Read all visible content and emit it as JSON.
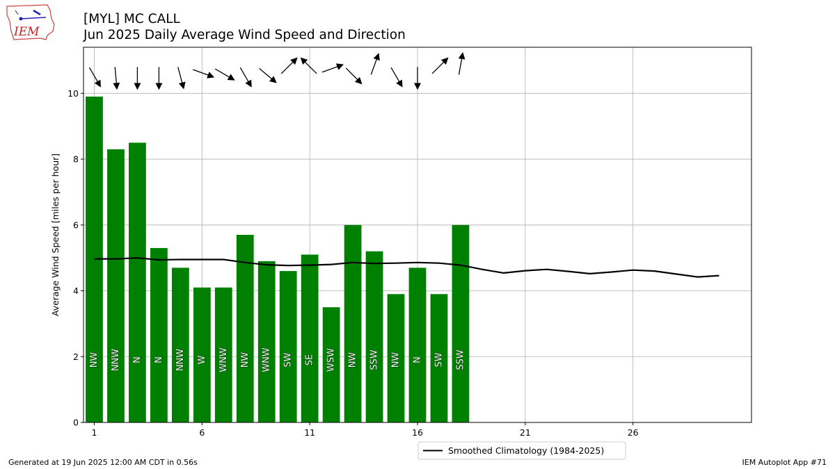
{
  "titles": {
    "line1": "[MYL] MC CALL",
    "line2": "Jun 2025 Daily Average Wind Speed and Direction"
  },
  "logo_text": "IEM",
  "footer": {
    "left": "Generated at 19 Jun 2025 12:00 AM CDT in 0.56s",
    "right": "IEM Autoplot App #71"
  },
  "colors": {
    "bar": "#008000",
    "climo_line": "#000000",
    "grid": "#b0b0b0",
    "bar_label_fill": "#ffffff"
  },
  "chart_data": {
    "type": "bar",
    "ylabel": "Average Wind Speed [miles per hour]",
    "xlabel": "",
    "xlim": [
      0.5,
      31.5
    ],
    "ylim": [
      0,
      11.4
    ],
    "xticks": [
      1,
      6,
      11,
      16,
      21,
      26
    ],
    "yticks": [
      0,
      2,
      4,
      6,
      8,
      10
    ],
    "grid": true,
    "legend": {
      "placement": "below-right",
      "entries": [
        "Smoothed Climatology (1984-2025)"
      ]
    },
    "bars": {
      "days": [
        1,
        2,
        3,
        4,
        5,
        6,
        7,
        8,
        9,
        10,
        11,
        12,
        13,
        14,
        15,
        16,
        17,
        18
      ],
      "values": [
        9.9,
        8.3,
        8.5,
        5.3,
        4.7,
        4.1,
        4.1,
        5.7,
        4.9,
        4.6,
        5.1,
        3.5,
        6.0,
        5.2,
        3.9,
        4.7,
        3.9,
        6.0
      ],
      "directions": [
        "NW",
        "NNW",
        "N",
        "N",
        "NNW",
        "W",
        "WNW",
        "NW",
        "WNW",
        "SW",
        "SE",
        "WSW",
        "NW",
        "SSW",
        "NW",
        "N",
        "SW",
        "SSW"
      ]
    },
    "arrows": {
      "days": [
        1,
        2,
        3,
        4,
        5,
        6,
        7,
        8,
        9,
        10,
        11,
        12,
        13,
        14,
        15,
        16,
        17,
        18
      ],
      "direction_deg": [
        330,
        355,
        0,
        0,
        345,
        290,
        300,
        330,
        310,
        225,
        135,
        250,
        315,
        200,
        330,
        0,
        225,
        190
      ]
    },
    "series": [
      {
        "name": "Smoothed Climatology (1984-2025)",
        "x": [
          1,
          2,
          3,
          4,
          5,
          6,
          7,
          8,
          9,
          10,
          11,
          12,
          13,
          14,
          15,
          16,
          17,
          18,
          19,
          20,
          21,
          22,
          23,
          24,
          25,
          26,
          27,
          28,
          29,
          30
        ],
        "values": [
          4.97,
          4.97,
          5.0,
          4.94,
          4.95,
          4.95,
          4.95,
          4.86,
          4.79,
          4.77,
          4.78,
          4.8,
          4.86,
          4.83,
          4.84,
          4.86,
          4.84,
          4.78,
          4.65,
          4.54,
          4.61,
          4.65,
          4.59,
          4.52,
          4.57,
          4.63,
          4.6,
          4.51,
          4.42,
          4.46
        ]
      }
    ]
  }
}
